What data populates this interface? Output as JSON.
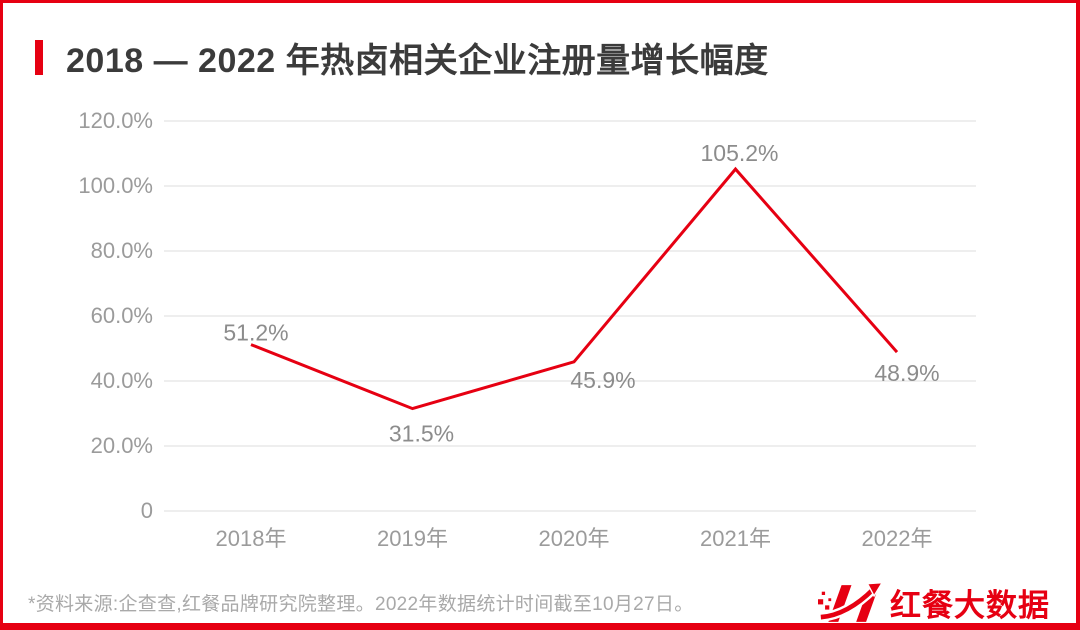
{
  "header": {
    "title": "2018 — 2022 年热卤相关企业注册量增长幅度"
  },
  "chart_data": {
    "type": "line",
    "title": "2018 — 2022 年热卤相关企业注册量增长幅度",
    "categories": [
      "2018年",
      "2019年",
      "2020年",
      "2021年",
      "2022年"
    ],
    "values": [
      51.2,
      31.5,
      45.9,
      105.2,
      48.9
    ],
    "data_labels": [
      "51.2%",
      "31.5%",
      "45.9%",
      "105.2%",
      "48.9%"
    ],
    "xlabel": "",
    "ylabel": "",
    "ylim": [
      0,
      120
    ],
    "ytick_values": [
      120,
      100,
      80,
      60,
      40,
      20,
      0
    ],
    "ytick_labels": [
      "120.0%",
      "100.0%",
      "80.0%",
      "60.0%",
      "40.0%",
      "20.0%",
      "0"
    ],
    "grid": true,
    "legend": false,
    "line_color": "#e60012"
  },
  "footer": {
    "source_note": "*资料来源:企查查,红餐品牌研究院整理。2022年数据统计时间截至10月27日。",
    "logo_text": "红餐大数据"
  },
  "colors": {
    "accent_red": "#e60012",
    "title_text": "#3b3b3b",
    "axis_text": "#9b9b9b",
    "data_label_text": "#8c8c8c",
    "grid_line": "#e9e9e9",
    "note_text": "#a9a9a9",
    "background": "#ffffff"
  }
}
